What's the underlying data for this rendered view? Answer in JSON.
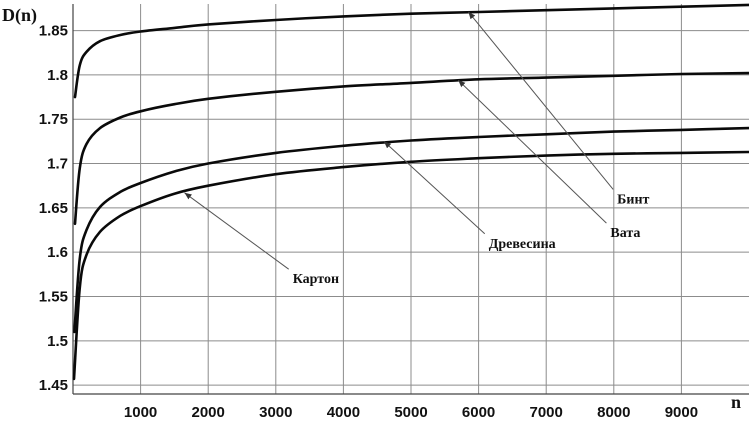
{
  "chart_data": {
    "type": "line",
    "title": "",
    "xlabel": "n",
    "ylabel": "D(n)",
    "xlim": [
      0,
      10000
    ],
    "ylim": [
      1.44,
      1.88
    ],
    "grid": true,
    "x_ticks": [
      1000,
      2000,
      3000,
      4000,
      5000,
      6000,
      7000,
      8000,
      9000
    ],
    "y_ticks": [
      1.45,
      1.5,
      1.55,
      1.6,
      1.65,
      1.7,
      1.75,
      1.8,
      1.85
    ],
    "y_tick_labels": [
      "1.45",
      "1.5",
      "1.55",
      "1.6",
      "1.65",
      "1.7",
      "1.75",
      "1.8",
      "1.85"
    ],
    "series": [
      {
        "name": "Бинт",
        "x": [
          30,
          100,
          200,
          400,
          700,
          1000,
          1500,
          2000,
          3000,
          4000,
          5000,
          6000,
          7000,
          8000,
          9000,
          10000
        ],
        "y": [
          1.775,
          1.811,
          1.826,
          1.838,
          1.845,
          1.849,
          1.853,
          1.857,
          1.862,
          1.866,
          1.869,
          1.871,
          1.873,
          1.875,
          1.877,
          1.879
        ]
      },
      {
        "name": "Вата",
        "x": [
          30,
          100,
          200,
          400,
          700,
          1000,
          1500,
          2000,
          3000,
          4000,
          5000,
          6000,
          7000,
          8000,
          9000,
          10000
        ],
        "y": [
          1.632,
          1.695,
          1.722,
          1.74,
          1.752,
          1.759,
          1.767,
          1.773,
          1.781,
          1.787,
          1.791,
          1.795,
          1.797,
          1.799,
          1.801,
          1.802
        ]
      },
      {
        "name": "Древесина",
        "x": [
          20,
          100,
          200,
          400,
          700,
          1000,
          1500,
          2000,
          3000,
          4000,
          5000,
          6000,
          7000,
          8000,
          9000,
          10000
        ],
        "y": [
          1.51,
          1.593,
          1.625,
          1.651,
          1.668,
          1.678,
          1.691,
          1.7,
          1.712,
          1.72,
          1.726,
          1.73,
          1.733,
          1.736,
          1.738,
          1.74
        ]
      },
      {
        "name": "Картон",
        "x": [
          15,
          100,
          200,
          400,
          700,
          1000,
          1500,
          2000,
          3000,
          4000,
          5000,
          6000,
          7000,
          8000,
          9000,
          10000
        ],
        "y": [
          1.457,
          1.56,
          1.597,
          1.623,
          1.641,
          1.652,
          1.666,
          1.675,
          1.688,
          1.696,
          1.702,
          1.706,
          1.709,
          1.711,
          1.712,
          1.713
        ]
      }
    ],
    "annotations": [
      {
        "text": "Бинт",
        "text_x": 8050,
        "text_y": 1.655,
        "arrow_x": 5850,
        "arrow_y": 1.871
      },
      {
        "text": "Вата",
        "text_x": 7950,
        "text_y": 1.617,
        "arrow_x": 5700,
        "arrow_y": 1.794
      },
      {
        "text": "Древесина",
        "text_x": 6150,
        "text_y": 1.605,
        "arrow_x": 4600,
        "arrow_y": 1.725
      },
      {
        "text": "Картон",
        "text_x": 3250,
        "text_y": 1.565,
        "arrow_x": 1650,
        "arrow_y": 1.667
      }
    ]
  }
}
